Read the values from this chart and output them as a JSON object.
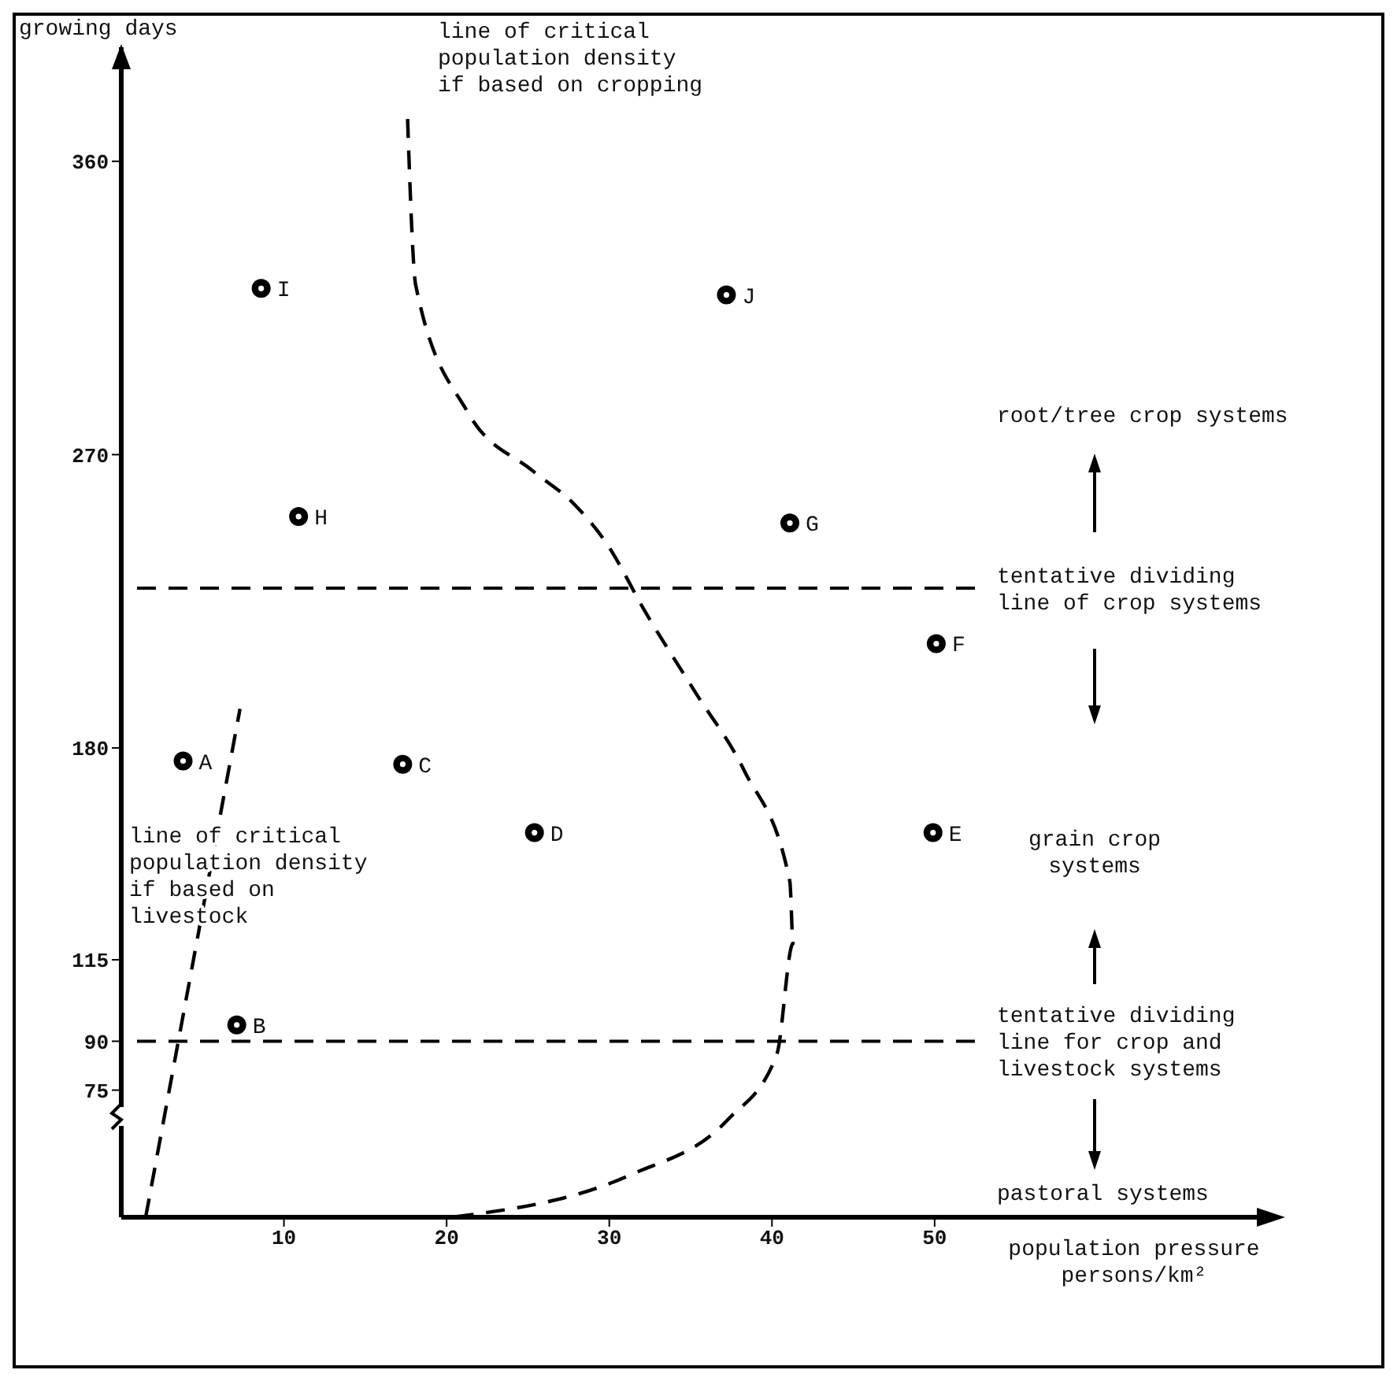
{
  "chart_data": {
    "type": "scatter",
    "xlabel": "population pressure persons/km²",
    "ylabel": "growing days",
    "xlim": [
      0,
      70
    ],
    "ylim": [
      36,
      395
    ],
    "xticks": [
      10,
      20,
      30,
      40,
      50
    ],
    "yticks": [
      75,
      90,
      115,
      180,
      270,
      360
    ],
    "marker": "circle",
    "series": [
      {
        "name": "A",
        "color": "#000000",
        "x": [
          3.8
        ],
        "values": [
          176
        ]
      },
      {
        "name": "B",
        "color": "#000000",
        "x": [
          7.1
        ],
        "values": [
          95
        ]
      },
      {
        "name": "C",
        "color": "#000000",
        "x": [
          17.3
        ],
        "values": [
          175
        ]
      },
      {
        "name": "D",
        "color": "#000000",
        "x": [
          25.4
        ],
        "values": [
          154
        ]
      },
      {
        "name": "E",
        "color": "#000000",
        "x": [
          49.9
        ],
        "values": [
          154
        ]
      },
      {
        "name": "F",
        "color": "#000000",
        "x": [
          50.1
        ],
        "values": [
          212
        ]
      },
      {
        "name": "G",
        "color": "#000000",
        "x": [
          41.1
        ],
        "values": [
          249
        ]
      },
      {
        "name": "H",
        "color": "#000000",
        "x": [
          10.9
        ],
        "values": [
          251
        ]
      },
      {
        "name": "I",
        "color": "#000000",
        "x": [
          8.6
        ],
        "values": [
          321
        ]
      },
      {
        "name": "J",
        "color": "#000000",
        "x": [
          37.2
        ],
        "values": [
          319
        ]
      },
      {
        "type": "line",
        "color": "#000000",
        "line_style": "dashed",
        "marker": "none",
        "x": [
          17.6,
          18.1,
          21.3,
          25.3,
          27.8,
          29.8,
          32.3,
          35.3,
          38.3,
          41.1,
          41.3,
          40.3,
          37.3,
          31.3,
          20.3
        ],
        "values": [
          373,
          322,
          283,
          265,
          255,
          243,
          221,
          197,
          173,
          139,
          120,
          86,
          66,
          49,
          36
        ]
      },
      {
        "type": "line",
        "color": "#000000",
        "line_style": "dashed",
        "marker": "none",
        "x": [
          1.5,
          7.3
        ],
        "values": [
          36,
          192
        ]
      }
    ],
    "ref_lines": [
      {
        "axis": "y",
        "value": 229,
        "label": "tentative dividing line of crop systems",
        "line_style": "dashed",
        "color": "#000000"
      },
      {
        "axis": "y",
        "value": 90,
        "label": "tentative dividing line for crop and livestock systems",
        "line_style": "dashed",
        "color": "#000000"
      }
    ],
    "annotations": [
      "line of critical population density if based on cropping",
      "line of critical population density if based on livestock",
      "root/tree crop systems",
      "grain crop systems",
      "pastoral systems"
    ]
  }
}
